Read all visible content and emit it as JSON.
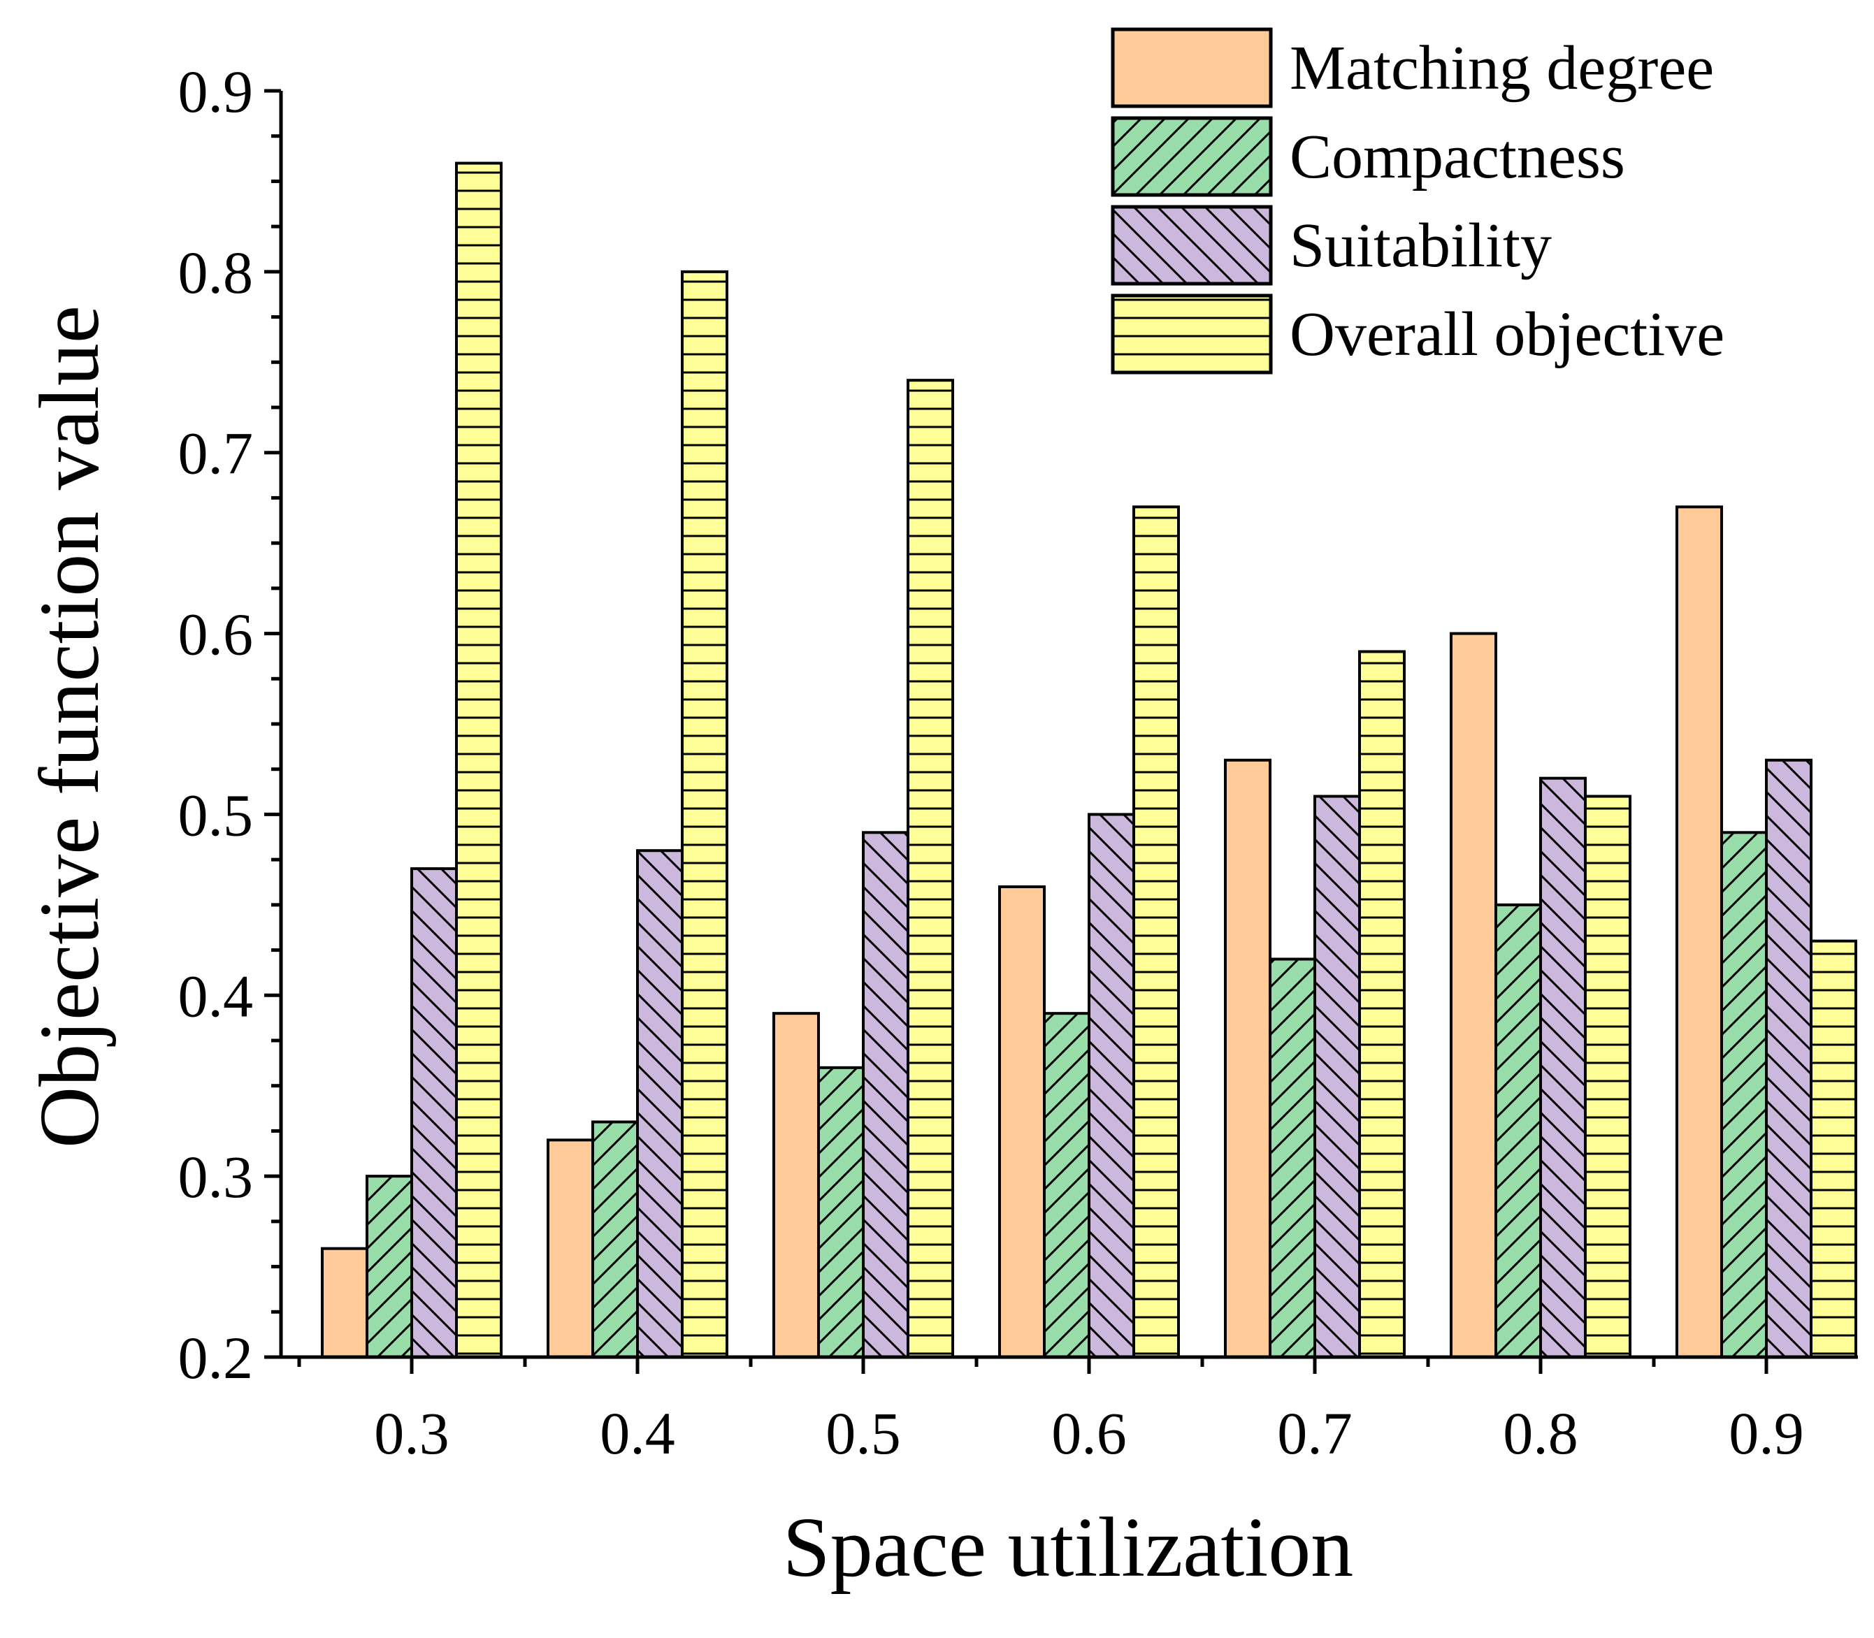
{
  "chart_data": {
    "type": "bar",
    "title": "",
    "xlabel": "Space utilization",
    "ylabel": "Objective function value",
    "categories": [
      "0.3",
      "0.4",
      "0.5",
      "0.6",
      "0.7",
      "0.8",
      "0.9"
    ],
    "ylim": [
      0.2,
      0.9
    ],
    "yticks": [
      "0.2",
      "0.3",
      "0.4",
      "0.5",
      "0.6",
      "0.7",
      "0.8",
      "0.9"
    ],
    "legend_position": "top-right",
    "grid": false,
    "series": [
      {
        "name": "Matching degree",
        "pattern": "solid",
        "color": "#FFCC99",
        "values": [
          0.26,
          0.32,
          0.39,
          0.46,
          0.53,
          0.6,
          0.67
        ]
      },
      {
        "name": "Compactness",
        "pattern": "diagonal-forward",
        "color": "#99DDAA",
        "values": [
          0.3,
          0.33,
          0.36,
          0.39,
          0.42,
          0.45,
          0.49
        ]
      },
      {
        "name": "Suitability",
        "pattern": "diagonal-back",
        "color": "#CCB8DD",
        "values": [
          0.47,
          0.48,
          0.49,
          0.5,
          0.51,
          0.52,
          0.53
        ]
      },
      {
        "name": "Overall objective",
        "pattern": "horizontal",
        "color": "#FFFF99",
        "values": [
          0.86,
          0.8,
          0.74,
          0.67,
          0.59,
          0.51,
          0.43
        ]
      }
    ]
  }
}
